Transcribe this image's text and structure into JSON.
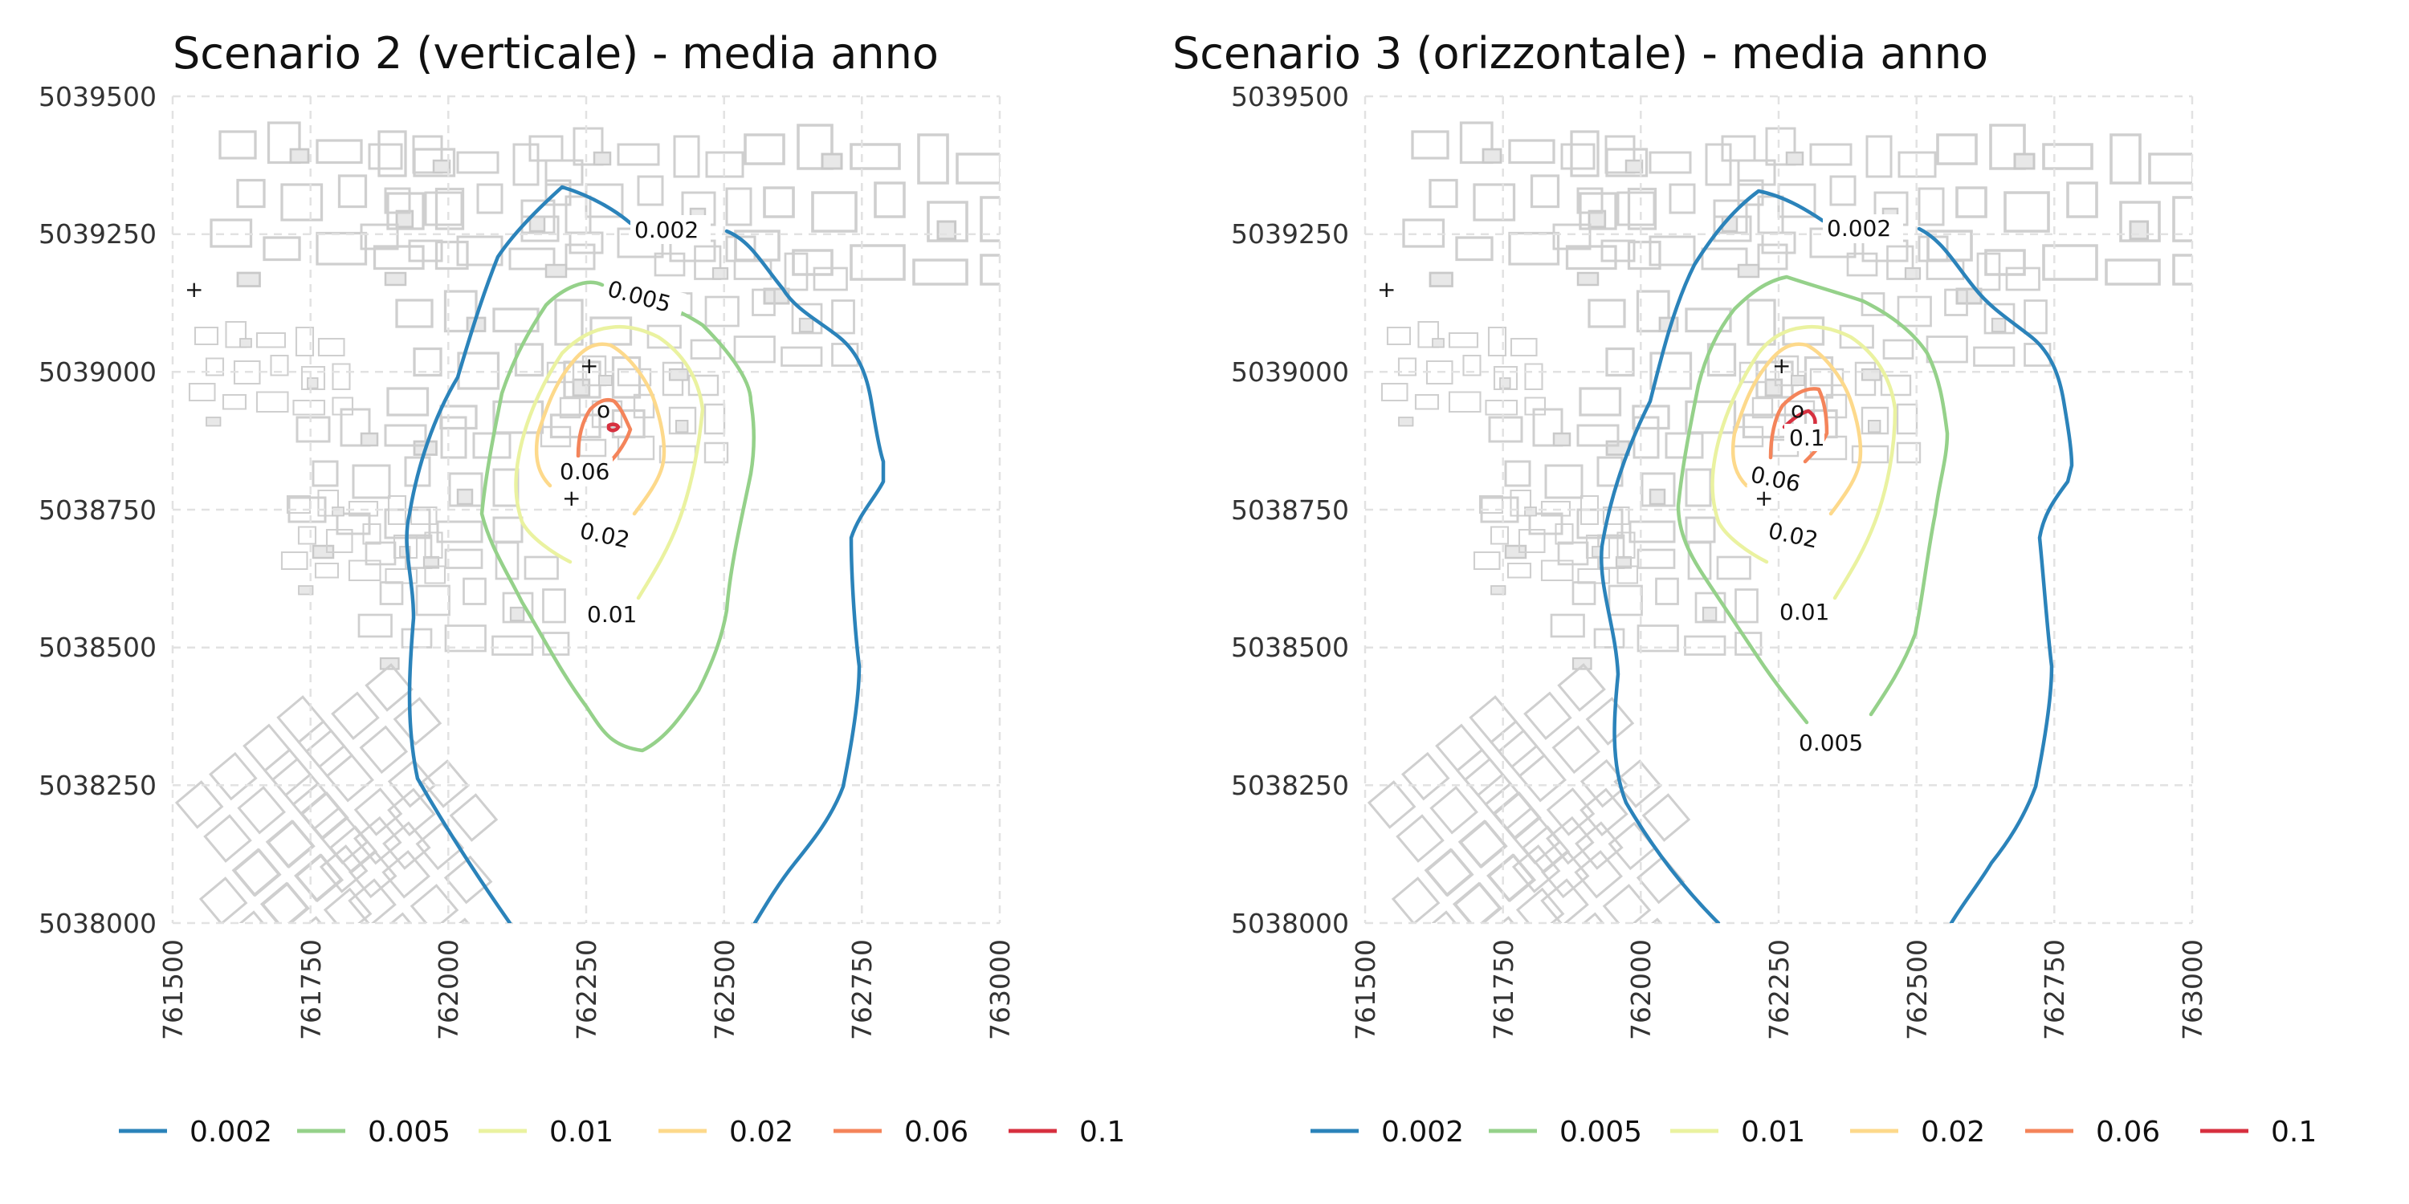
{
  "panels": [
    {
      "title": "Scenario 2 (verticale) - media anno",
      "x_ticks": [
        "761500",
        "761750",
        "762000",
        "762250",
        "762500",
        "762750",
        "763000"
      ],
      "y_ticks": [
        "5038000",
        "5038250",
        "5038500",
        "5038750",
        "5039000",
        "5039250",
        "5039500"
      ],
      "contour_labels": [
        "0.002",
        "0.005",
        "0.06",
        "0.02",
        "0.01"
      ],
      "point_markers": "+",
      "source_marker": "o"
    },
    {
      "title": "Scenario 3 (orizzontale) - media anno",
      "x_ticks": [
        "761500",
        "761750",
        "762000",
        "762250",
        "762500",
        "762750",
        "763000"
      ],
      "y_ticks": [
        "5038000",
        "5038250",
        "5038500",
        "5038750",
        "5039000",
        "5039250",
        "5039500"
      ],
      "contour_labels": [
        "0.002",
        "0.1",
        "0.06",
        "0.02",
        "0.01",
        "0.005"
      ],
      "point_markers": "+",
      "source_marker": "o"
    }
  ],
  "legend": {
    "items": [
      {
        "label": "0.002",
        "color": "#2b83ba"
      },
      {
        "label": "0.005",
        "color": "#95d18a"
      },
      {
        "label": "0.01",
        "color": "#eaf2a0"
      },
      {
        "label": "0.02",
        "color": "#fdd98b"
      },
      {
        "label": "0.06",
        "color": "#f4845a"
      },
      {
        "label": "0.1",
        "color": "#d7303f"
      }
    ]
  },
  "colors": {
    "grid": "#e2e2e2",
    "buildings": "#cfcfcf"
  }
}
